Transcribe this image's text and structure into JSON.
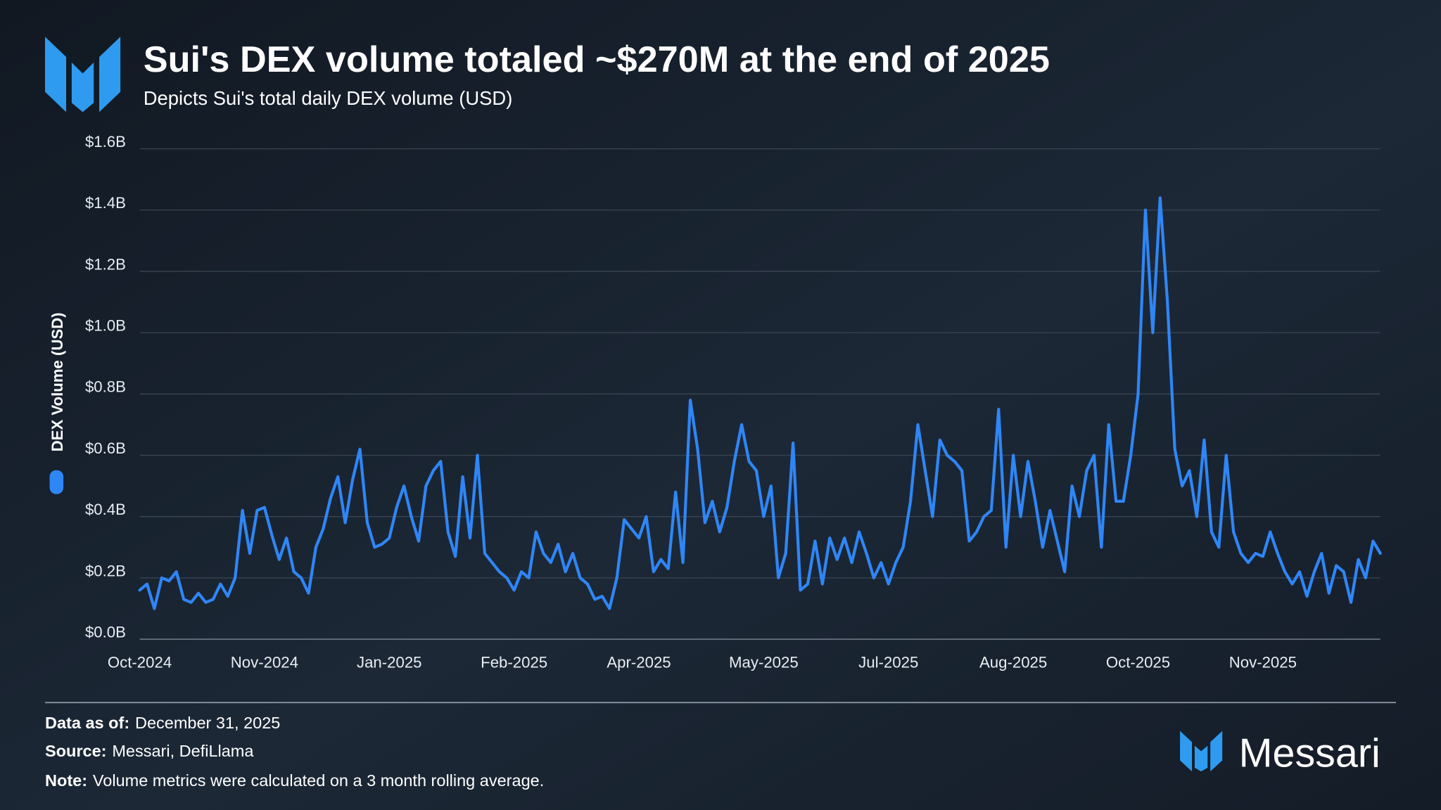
{
  "chart_data": {
    "type": "line",
    "title": "Sui's DEX volume totaled ~$270M at the end of 2025",
    "subtitle": "Depicts Sui's total daily DEX volume (USD)",
    "y_label": "DEX Volume (USD)",
    "categories": [
      "Oct-2024",
      null,
      null,
      null,
      null,
      null,
      null,
      null,
      null,
      null,
      null,
      null,
      null,
      null,
      null,
      null,
      null,
      "Nov-2024",
      null,
      null,
      null,
      null,
      null,
      null,
      null,
      null,
      null,
      null,
      null,
      null,
      null,
      null,
      null,
      null,
      "Jan-2025",
      null,
      null,
      null,
      null,
      null,
      null,
      null,
      null,
      null,
      null,
      null,
      null,
      null,
      null,
      null,
      null,
      "Feb-2025",
      null,
      null,
      null,
      null,
      null,
      null,
      null,
      null,
      null,
      null,
      null,
      null,
      null,
      null,
      null,
      null,
      "Apr-2025",
      null,
      null,
      null,
      null,
      null,
      null,
      null,
      null,
      null,
      null,
      null,
      null,
      null,
      null,
      null,
      null,
      "May-2025",
      null,
      null,
      null,
      null,
      null,
      null,
      null,
      null,
      null,
      null,
      null,
      null,
      null,
      null,
      null,
      null,
      "Jul-2025",
      null,
      null,
      null,
      null,
      null,
      null,
      null,
      null,
      null,
      null,
      null,
      null,
      null,
      null,
      null,
      null,
      "Aug-2025",
      null,
      null,
      null,
      null,
      null,
      null,
      null,
      null,
      null,
      null,
      null,
      null,
      null,
      null,
      null,
      null,
      "Oct-2025",
      null,
      null,
      null,
      null,
      null,
      null,
      null,
      null,
      null,
      null,
      null,
      null,
      null,
      null,
      null,
      null,
      "Nov-2025",
      null,
      null,
      null,
      null,
      null,
      null,
      null,
      null,
      null,
      null,
      null,
      null,
      null,
      null,
      null,
      null
    ],
    "series": [
      {
        "name": "DEX Volume (USD)",
        "color": "#2f86f6",
        "values": [
          0.16,
          0.18,
          0.1,
          0.2,
          0.19,
          0.22,
          0.13,
          0.12,
          0.15,
          0.12,
          0.13,
          0.18,
          0.14,
          0.2,
          0.42,
          0.28,
          0.42,
          0.43,
          0.34,
          0.26,
          0.33,
          0.22,
          0.2,
          0.15,
          0.3,
          0.36,
          0.46,
          0.53,
          0.38,
          0.52,
          0.62,
          0.38,
          0.3,
          0.31,
          0.33,
          0.43,
          0.5,
          0.4,
          0.32,
          0.5,
          0.55,
          0.58,
          0.35,
          0.27,
          0.53,
          0.33,
          0.6,
          0.28,
          0.25,
          0.22,
          0.2,
          0.16,
          0.22,
          0.2,
          0.35,
          0.28,
          0.25,
          0.31,
          0.22,
          0.28,
          0.2,
          0.18,
          0.13,
          0.14,
          0.1,
          0.2,
          0.39,
          0.36,
          0.33,
          0.4,
          0.22,
          0.26,
          0.23,
          0.48,
          0.25,
          0.78,
          0.62,
          0.38,
          0.45,
          0.35,
          0.43,
          0.58,
          0.7,
          0.58,
          0.55,
          0.4,
          0.5,
          0.2,
          0.28,
          0.64,
          0.16,
          0.18,
          0.32,
          0.18,
          0.33,
          0.26,
          0.33,
          0.25,
          0.35,
          0.28,
          0.2,
          0.25,
          0.18,
          0.25,
          0.3,
          0.45,
          0.7,
          0.55,
          0.4,
          0.65,
          0.6,
          0.58,
          0.55,
          0.32,
          0.35,
          0.4,
          0.42,
          0.75,
          0.3,
          0.6,
          0.4,
          0.58,
          0.45,
          0.3,
          0.42,
          0.32,
          0.22,
          0.5,
          0.4,
          0.55,
          0.6,
          0.3,
          0.7,
          0.45,
          0.45,
          0.6,
          0.8,
          1.4,
          1.0,
          1.44,
          1.1,
          0.62,
          0.5,
          0.55,
          0.4,
          0.65,
          0.35,
          0.3,
          0.6,
          0.35,
          0.28,
          0.25,
          0.28,
          0.27,
          0.35,
          0.28,
          0.22,
          0.18,
          0.22,
          0.14,
          0.22,
          0.28,
          0.15,
          0.24,
          0.22,
          0.12,
          0.26,
          0.2,
          0.32,
          0.28
        ]
      }
    ],
    "ylim": [
      0,
      1.6
    ],
    "yticks": [
      {
        "value": 0,
        "label": "$0.0B"
      },
      {
        "value": 0.2,
        "label": "$0.2B"
      },
      {
        "value": 0.4,
        "label": "$0.4B"
      },
      {
        "value": 0.6,
        "label": "$0.6B"
      },
      {
        "value": 0.8,
        "label": "$0.8B"
      },
      {
        "value": 1.0,
        "label": "$1.0B"
      },
      {
        "value": 1.2,
        "label": "$1.2B"
      },
      {
        "value": 1.4,
        "label": "$1.4B"
      },
      {
        "value": 1.6,
        "label": "$1.6B"
      }
    ],
    "grid": true
  },
  "footer": {
    "data_as_of_label": "Data as of:",
    "data_as_of": "December 31, 2025",
    "source_label": "Source:",
    "source": "Messari, DefiLlama",
    "note_label": "Note:",
    "note": "Volume metrics were calculated on a 3 month rolling average.",
    "brand": "Messari"
  }
}
